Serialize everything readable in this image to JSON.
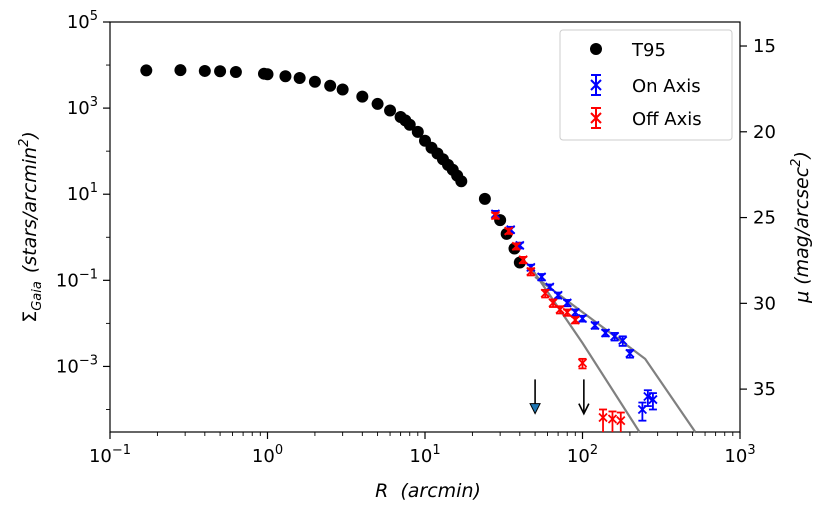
{
  "chart_data": {
    "type": "scatter",
    "xlabel": "R",
    "xlabel_unit": "(arcmin)",
    "ylabel_left": "Σ",
    "ylabel_left_sub": "Gaia",
    "ylabel_left_unit": "(stars/arcmin",
    "ylabel_left_unit_sup": "2",
    "ylabel_left_unit_close": ")",
    "ylabel_right": "μ",
    "ylabel_right_unit": "(mag/arcsec",
    "ylabel_right_unit_sup": "2",
    "ylabel_right_unit_close": ")",
    "x_scale": "log",
    "y_scale": "log",
    "xlim": [
      0.1,
      1000
    ],
    "ylim": [
      3e-05,
      100000
    ],
    "y2lim_inverted": [
      37.5,
      13.6
    ],
    "x_ticks": [
      {
        "base": "10",
        "exp": "−1"
      },
      {
        "base": "10",
        "exp": "0"
      },
      {
        "base": "10",
        "exp": "1"
      },
      {
        "base": "10",
        "exp": "2"
      },
      {
        "base": "10",
        "exp": "3"
      }
    ],
    "y_ticks": [
      {
        "base": "10",
        "exp": "−3"
      },
      {
        "base": "10",
        "exp": "−1"
      },
      {
        "base": "10",
        "exp": "1"
      },
      {
        "base": "10",
        "exp": "3"
      },
      {
        "base": "10",
        "exp": "5"
      }
    ],
    "y2_ticks": [
      "15",
      "20",
      "25",
      "30",
      "35"
    ],
    "legend_position": "top-right",
    "colors": {
      "t95": "#000000",
      "on_axis": "#0000ff",
      "off_axis": "#ff0000",
      "fit": "#808080",
      "arrow_fill": "#1f77b4"
    },
    "series": [
      {
        "name": "T95",
        "marker": "circle",
        "x": [
          0.17,
          0.28,
          0.4,
          0.5,
          0.63,
          0.95,
          1.0,
          1.3,
          1.6,
          2.0,
          2.5,
          3.0,
          4.0,
          5.0,
          6.0,
          7.0,
          7.5,
          8.0,
          9.0,
          10.0,
          11.0,
          12.0,
          13.0,
          14.0,
          15.0,
          16.0,
          17.0,
          24.0,
          30.0,
          33.0,
          37.0,
          40.0
        ],
        "y": [
          7500,
          7600,
          7300,
          7200,
          6900,
          6300,
          6100,
          5500,
          5000,
          4100,
          3300,
          2700,
          1850,
          1250,
          880,
          620,
          520,
          410,
          280,
          175,
          120,
          88,
          65,
          48,
          37,
          27,
          20,
          7.8,
          2.5,
          1.2,
          0.55,
          0.26
        ]
      },
      {
        "name": "On Axis",
        "marker": "x-errorbar",
        "x": [
          28,
          35,
          40,
          47,
          55,
          62,
          70,
          80,
          90,
          100,
          120,
          140,
          160,
          180,
          200,
          240,
          260,
          280
        ],
        "y": [
          3.5,
          1.5,
          0.65,
          0.2,
          0.12,
          0.07,
          0.045,
          0.03,
          0.018,
          0.013,
          0.009,
          0.006,
          0.005,
          0.004,
          0.002,
          0.0001,
          0.0002,
          0.00017
        ],
        "yerr": [
          0.6,
          0.25,
          0.1,
          0.03,
          0.02,
          0.01,
          0.007,
          0.005,
          0.003,
          0.002,
          0.0015,
          0.001,
          0.001,
          0.001,
          0.0004,
          4.5e-05,
          8e-05,
          7e-05
        ]
      },
      {
        "name": "Off Axis",
        "marker": "x-errorbar",
        "x": [
          28,
          34,
          38,
          42,
          47,
          58,
          65,
          72,
          80,
          90,
          100,
          135,
          155,
          175
        ],
        "y": [
          3.2,
          1.4,
          0.62,
          0.3,
          0.16,
          0.05,
          0.03,
          0.021,
          0.018,
          0.012,
          0.0012,
          6.5e-05,
          6e-05,
          5.5e-05
        ],
        "yerr": [
          0.5,
          0.2,
          0.1,
          0.05,
          0.03,
          0.01,
          0.006,
          0.004,
          0.003,
          0.002,
          0.0003,
          3.5e-05,
          3e-05,
          3e-05
        ]
      }
    ],
    "fit_lines": [
      {
        "x": [
          50,
          250,
          520
        ],
        "y": [
          0.12,
          0.0015,
          3e-05
        ]
      },
      {
        "x": [
          47,
          100,
          230
        ],
        "y": [
          0.2,
          0.0035,
          3e-05
        ]
      }
    ],
    "arrows": [
      {
        "x": 50,
        "y_top": 0.0005,
        "y_tip": 8e-05,
        "filled": true
      },
      {
        "x": 102,
        "y_top": 0.0005,
        "y_tip": 8e-05,
        "filled": false
      }
    ]
  }
}
